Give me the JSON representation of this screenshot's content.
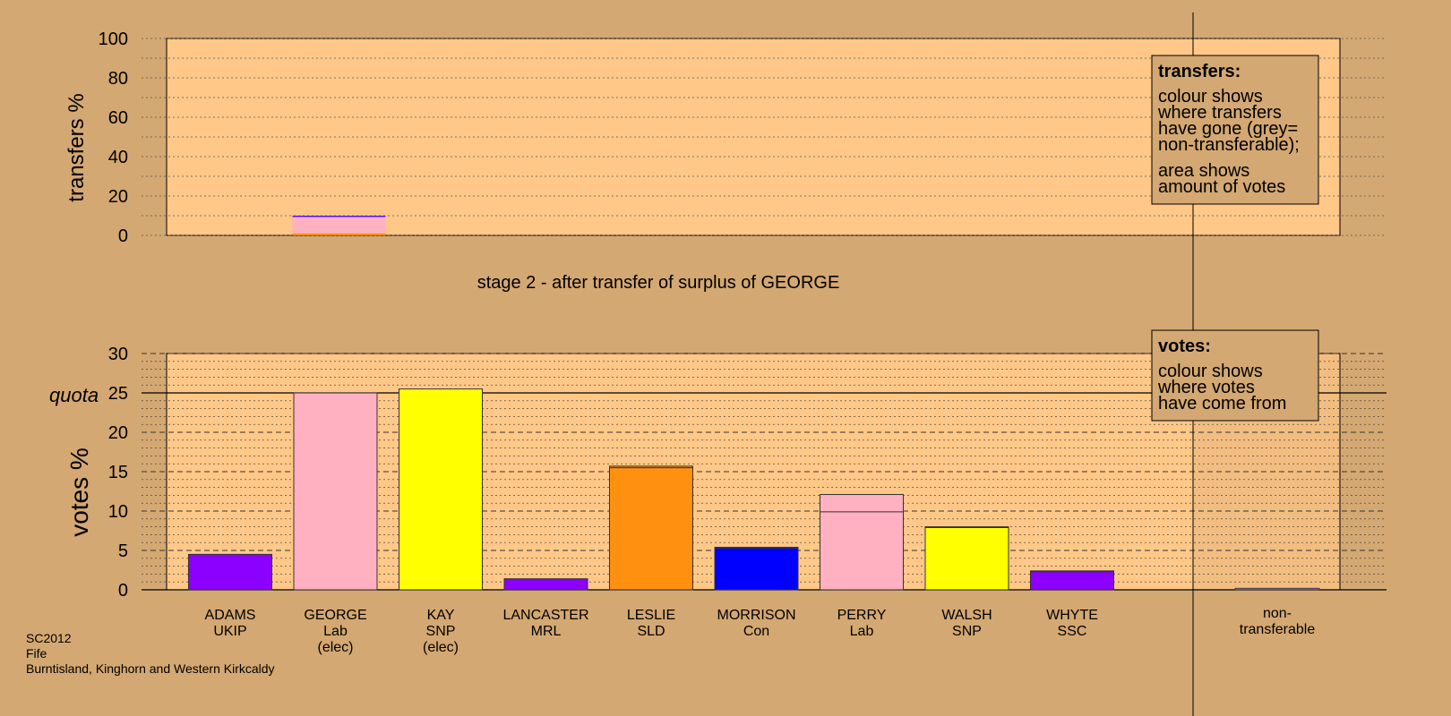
{
  "chart_data": [
    {
      "type": "bar",
      "ylabel": "transfers %",
      "ylim": [
        0,
        100
      ],
      "yticks": [
        "0",
        "20",
        "40",
        "60",
        "80",
        "100"
      ],
      "grid": true,
      "caption": "stage 2 - after transfer of surplus of GEORGE",
      "transfer_column": "GEORGE",
      "segments": [
        {
          "from": 0,
          "to": 1,
          "color": "#ff8c00"
        },
        {
          "from": 1,
          "to": 9.3,
          "color": "#ffb0c1"
        },
        {
          "from": 9.3,
          "to": 9.8,
          "color": "#8a2be2"
        },
        {
          "from": 9.8,
          "to": 10,
          "color": "#0000ff"
        }
      ],
      "legend": {
        "title": "transfers:",
        "lines1": [
          "colour shows",
          "where transfers",
          "have gone (grey=",
          "non-transferable);"
        ],
        "lines2": [
          "area shows",
          "amount of votes"
        ]
      }
    },
    {
      "type": "bar",
      "ylabel": "votes %",
      "ylim": [
        0,
        30
      ],
      "yticks": [
        "0",
        "5",
        "10",
        "15",
        "20",
        "25",
        "30"
      ],
      "grid": true,
      "quota": {
        "label": "quota",
        "value": 25
      },
      "candidates": [
        {
          "name": "ADAMS",
          "party": "UKIP",
          "status": "",
          "value": 4.5,
          "prev": 4.5,
          "color": "#8b00ff",
          "transfer_color": "#8b00ff"
        },
        {
          "name": "GEORGE",
          "party": "Lab",
          "status": "(elec)",
          "value": 25.0,
          "prev": 25.0,
          "color": "#ffb0c1",
          "transfer_color": "#ffb0c1"
        },
        {
          "name": "KAY",
          "party": "SNP",
          "status": "(elec)",
          "value": 25.5,
          "prev": 25.5,
          "color": "#ffff00",
          "transfer_color": "#ffff00"
        },
        {
          "name": "LANCASTER",
          "party": "MRL",
          "status": "",
          "value": 1.4,
          "prev": 1.4,
          "color": "#8b00ff",
          "transfer_color": "#8b00ff"
        },
        {
          "name": "LESLIE",
          "party": "SLD",
          "status": "",
          "value": 15.7,
          "prev": 15.5,
          "color": "#ff9010",
          "transfer_color": "#ff9010"
        },
        {
          "name": "MORRISON",
          "party": "Con",
          "status": "",
          "value": 5.4,
          "prev": 5.3,
          "color": "#0000ff",
          "transfer_color": "#0000ff"
        },
        {
          "name": "PERRY",
          "party": "Lab",
          "status": "",
          "value": 12.1,
          "prev": 9.9,
          "color": "#ffb0c1",
          "transfer_color": "#ffb0c1"
        },
        {
          "name": "WALSH",
          "party": "SNP",
          "status": "",
          "value": 8.0,
          "prev": 7.9,
          "color": "#ffff00",
          "transfer_color": "#ffff00"
        },
        {
          "name": "WHYTE",
          "party": "SSC",
          "status": "",
          "value": 2.4,
          "prev": 2.3,
          "color": "#8b00ff",
          "transfer_color": "#8b00ff"
        }
      ],
      "nontransferable": {
        "name": "non-",
        "party": "transferable",
        "value": 0.2,
        "color": "#9a6b9a"
      },
      "legend": {
        "title": "votes:",
        "lines1": [
          "colour shows",
          "where votes",
          "have come from"
        ]
      }
    }
  ],
  "footer": {
    "line1": "SC2012",
    "line2": "Fife",
    "line3": "Burntisland, Kinghorn and Western Kirkcaldy"
  }
}
